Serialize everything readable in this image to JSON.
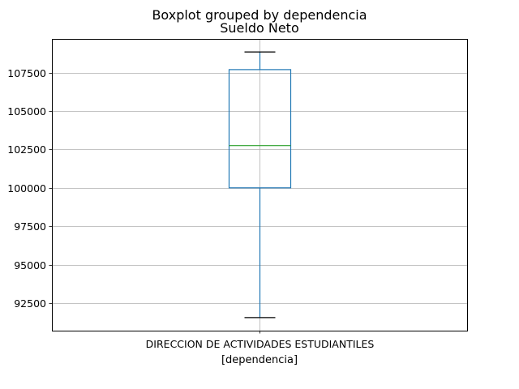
{
  "chart_data": {
    "type": "boxplot",
    "suptitle": "Boxplot grouped by dependencia",
    "title": "Sueldo Neto",
    "xlabel": "[dependencia]",
    "categories": [
      "DIRECCION DE ACTIVIDADES ESTUDIANTILES"
    ],
    "boxes": [
      {
        "category": "DIRECCION DE ACTIVIDADES ESTUDIANTILES",
        "whisker_low": 91550,
        "q1": 100000,
        "median": 102750,
        "q3": 107700,
        "whisker_high": 108850
      }
    ],
    "ylim": [
      90700,
      109700
    ],
    "yticks": [
      92500,
      95000,
      97500,
      100000,
      102500,
      105000,
      107500
    ],
    "ytick_labels": [
      "92500",
      "95000",
      "97500",
      "100000",
      "102500",
      "105000",
      "107500"
    ],
    "grid": true,
    "colors": {
      "box": "#1f77b4",
      "median": "#2ca02c",
      "whisker_cap": "#000000",
      "grid": "#b0b0b0"
    }
  }
}
